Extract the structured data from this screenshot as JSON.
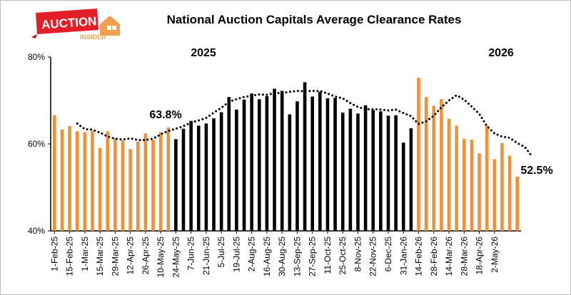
{
  "logo": {
    "line1": "AUCTION",
    "line2": "INSIDER"
  },
  "chart_data": {
    "type": "bar",
    "title": "National Auction Capitals Average Clearance Rates",
    "xlabel": "",
    "ylabel": "",
    "ylim": [
      40,
      80
    ],
    "yticks": [
      "40%",
      "60%",
      "80%"
    ],
    "grid": false,
    "legend": "none",
    "year_labels": [
      "2025",
      "2026"
    ],
    "annotations": [
      "63.8%",
      "52.5%"
    ],
    "x_tick_labels": [
      "1-Feb-25",
      "15-Feb-25",
      "1-Mar-25",
      "15-Mar-25",
      "29-Mar-25",
      "12-Apr-25",
      "26-Apr-25",
      "10-May-25",
      "24-May-25",
      "7-Jun-25",
      "21-Jun-25",
      "5-Jul-25",
      "19-Jul-25",
      "2-Aug-25",
      "16-Aug-25",
      "30-Aug-25",
      "13-Sep-25",
      "27-Sep-25",
      "11-Oct-25",
      "25-Oct-25",
      "8-Nov-25",
      "22-Nov-25",
      "6-Dec-25",
      "31-Jan-26",
      "14-Feb-26",
      "28-Feb-26",
      "14-Mar-26",
      "28-Mar-26",
      "18-Apr-26",
      "2-May-26"
    ],
    "colors": {
      "orange": "#f0913a",
      "black": "#000000",
      "trend": "#000000"
    },
    "series": [
      {
        "values": [
          66.6,
          63.3,
          64.1,
          62.9,
          62.7,
          63.0,
          59.1,
          62.9,
          61.3,
          60.8,
          58.8,
          60.6,
          62.4,
          61.0,
          62.7,
          63.8,
          61.1,
          63.5,
          65.3,
          64.2,
          64.7,
          65.9,
          67.3,
          70.8,
          67.9,
          70.2,
          71.6,
          70.3,
          71.0,
          72.7,
          72.2,
          66.8,
          69.8,
          74.2,
          70.9,
          72.0,
          70.5,
          70.6,
          67.2,
          68.1,
          67.0,
          68.9,
          67.8,
          67.5,
          66.5,
          66.6,
          60.3,
          63.6,
          75.2,
          70.8,
          68.8,
          70.3,
          65.8,
          64.2,
          61.2,
          61.0,
          57.8,
          64.2,
          56.5,
          60.2,
          57.3,
          52.5
        ],
        "colors": [
          "orange",
          "orange",
          "orange",
          "orange",
          "orange",
          "orange",
          "orange",
          "orange",
          "orange",
          "orange",
          "orange",
          "orange",
          "orange",
          "orange",
          "orange",
          "orange",
          "black",
          "black",
          "black",
          "black",
          "black",
          "black",
          "black",
          "black",
          "black",
          "black",
          "black",
          "black",
          "black",
          "black",
          "black",
          "black",
          "black",
          "black",
          "black",
          "black",
          "black",
          "black",
          "black",
          "black",
          "black",
          "black",
          "black",
          "black",
          "black",
          "black",
          "black",
          "black",
          "orange",
          "orange",
          "orange",
          "orange",
          "orange",
          "orange",
          "orange",
          "orange",
          "orange",
          "orange",
          "orange",
          "orange",
          "orange",
          "orange"
        ]
      },
      {
        "type": "line",
        "style": "dotted",
        "start_index": 3,
        "values": [
          64.7,
          63.4,
          63.3,
          62.6,
          61.7,
          61.2,
          61.0,
          61.3,
          60.9,
          60.9,
          61.2,
          62.2,
          63.0,
          63.5,
          64.1,
          64.9,
          65.4,
          66.0,
          67.2,
          68.3,
          69.7,
          70.3,
          70.8,
          71.1,
          71.4,
          71.3,
          71.7,
          71.7,
          72.0,
          72.2,
          72.1,
          72.2,
          72.2,
          71.6,
          70.9,
          70.5,
          69.4,
          68.5,
          68.0,
          68.0,
          67.9,
          67.7,
          67.9,
          67.1,
          66.4,
          64.6,
          65.2,
          66.5,
          68.4,
          70.0,
          71.2,
          70.2,
          68.6,
          66.9,
          64.1,
          62.4,
          61.7,
          61.4,
          60.2,
          59.3,
          57.0
        ]
      }
    ]
  }
}
